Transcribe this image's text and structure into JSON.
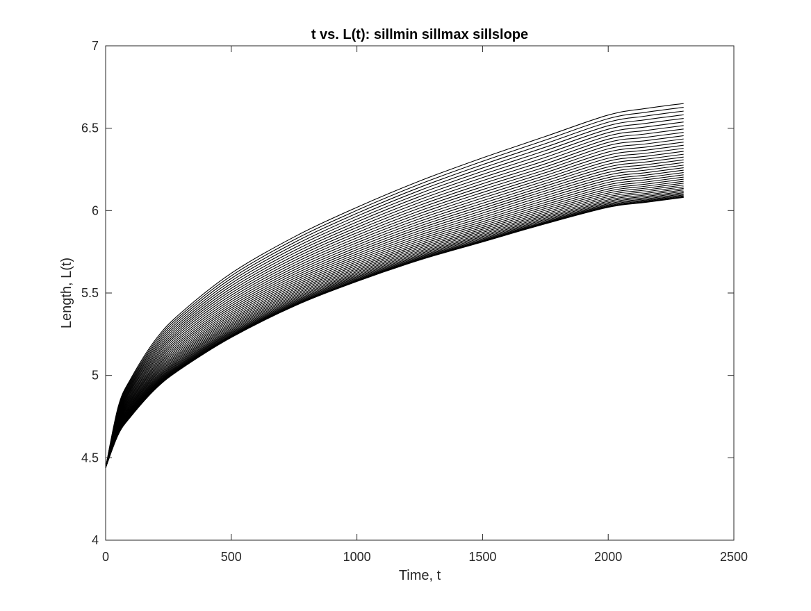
{
  "chart_data": {
    "type": "line",
    "title": "t vs. L(t): sillmin sillmax sillslope",
    "xlabel": "Time, t",
    "ylabel": "Length, L(t)",
    "xlim": [
      0,
      2500
    ],
    "ylim": [
      4,
      7
    ],
    "xticks": [
      0,
      500,
      1000,
      1500,
      2000,
      2500
    ],
    "yticks": [
      4,
      4.5,
      5,
      5.5,
      6,
      6.5,
      7
    ],
    "xtick_labels": [
      "0",
      "500",
      "1000",
      "1500",
      "2000",
      "2500"
    ],
    "ytick_labels": [
      "4",
      "4.5",
      "5",
      "5.5",
      "6",
      "6.5",
      "7"
    ],
    "grid": false,
    "legend": "none",
    "line_color": "#000000",
    "series_count": 40,
    "x": [
      0,
      50,
      100,
      200,
      300,
      500,
      750,
      1000,
      1250,
      1500,
      1750,
      2000,
      2150,
      2300
    ],
    "series": [
      {
        "values": [
          4.44,
          4.64,
          4.75,
          4.92,
          5.04,
          5.23,
          5.42,
          5.57,
          5.7,
          5.81,
          5.92,
          6.02,
          6.05,
          6.08
        ]
      },
      {
        "values": [
          4.44,
          4.7,
          4.83,
          5.02,
          5.15,
          5.36,
          5.56,
          5.72,
          5.86,
          5.98,
          6.1,
          6.21,
          6.24,
          6.27
        ]
      },
      {
        "values": [
          4.44,
          4.75,
          4.91,
          5.12,
          5.27,
          5.49,
          5.7,
          5.87,
          6.02,
          6.15,
          6.27,
          6.4,
          6.43,
          6.46
        ]
      },
      {
        "values": [
          4.44,
          4.81,
          4.98,
          5.22,
          5.38,
          5.62,
          5.84,
          6.02,
          6.18,
          6.32,
          6.45,
          6.58,
          6.62,
          6.65
        ]
      }
    ],
    "series_range": {
      "lowest_final": 5.98,
      "highest_final": 6.62,
      "start": 4.44
    }
  }
}
